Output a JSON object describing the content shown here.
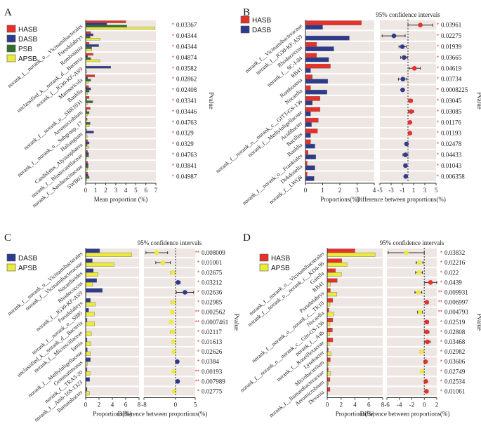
{
  "colors": {
    "HASB": "#e8302a",
    "DASB": "#2e3a8c",
    "PSB": "#2f6e2b",
    "APSB": "#ecea3a",
    "row_bg": "#ede6e3",
    "star": "#e8302a",
    "text": "#222222"
  },
  "chart_data": [
    {
      "panel": "A",
      "type": "bar",
      "orientation": "horizontal",
      "legend": [
        "HASB",
        "DASB",
        "PSB",
        "APSB"
      ],
      "legend_position": "top-left",
      "categories": [
        "norank_f__norank_o__Vicinamibacterales",
        "Pseudolabrys",
        "Romboutsia",
        "unclassified_k__norank_d__Bacteria",
        "norank_f__JG30-KF-AS9",
        "Marmoricola",
        "Bauldia",
        "norank_f__norank_o__SBR1031",
        "Aeromicrobium",
        "norank_f__norank_o__Subgroup_17",
        "Haliangium",
        "Candidatus_Alysiosphaera",
        "norank_f__Blastocatellaceae",
        "norank_f__Sandaracinaceae",
        "SWB02"
      ],
      "series": [
        {
          "name": "HASB",
          "values": [
            4.0,
            0.5,
            0.35,
            0.75,
            0.0,
            0.9,
            0.3,
            0.35,
            0.45,
            0.15,
            0.1,
            0.2,
            0.2,
            0.2,
            0.2
          ]
        },
        {
          "name": "DASB",
          "values": [
            2.1,
            0.75,
            1.3,
            0.2,
            2.5,
            0.2,
            0.5,
            0.1,
            0.1,
            0.05,
            0.8,
            0.35,
            0.3,
            0.25,
            0.25
          ]
        },
        {
          "name": "PSB",
          "values": [
            4.1,
            0.45,
            0.6,
            0.5,
            0.0,
            0.5,
            0.35,
            0.7,
            0.35,
            0.45,
            0.05,
            0.15,
            0.3,
            0.25,
            0.35
          ]
        },
        {
          "name": "APSB",
          "values": [
            6.9,
            1.45,
            0.6,
            1.4,
            0.1,
            0.25,
            0.2,
            0.15,
            0.2,
            0.35,
            0.15,
            0.3,
            0.1,
            0.2,
            0.1
          ]
        }
      ],
      "xlabel": "Mean proportion (%)",
      "xlim": [
        0,
        7
      ],
      "xticks": [
        "0",
        "1",
        "2",
        "3",
        "4",
        "5",
        "6",
        "7"
      ],
      "pvalues": [
        "0.03367",
        "0.04344",
        "0.04344",
        "0.04874",
        "0.03582",
        "0.02862",
        "0.02408",
        "0.03341",
        "0.03446",
        "0.04763",
        "0.0329",
        "0.0329",
        "0.04763",
        "0.03841",
        "0.04987"
      ],
      "significance": [
        "*",
        "*",
        "*",
        "*",
        "*",
        "*",
        "*",
        "*",
        "*",
        "*",
        "*",
        "*",
        "*",
        "*",
        "*"
      ],
      "pvalue_label": "Pvalue"
    },
    {
      "panel": "B",
      "type": "bar",
      "orientation": "horizontal",
      "legend": [
        "HASB",
        "DASB"
      ],
      "legend_position": "top-left",
      "categories": [
        "norank_f__Vicinamibacteraceae",
        "norank_f__JG30-KF-AS9",
        "Rhodococcus",
        "norank_f__SC-I-84",
        "RB41",
        "Romboutsia",
        "Nocardia",
        "norank_f__norank_o__norank_c__GITT-GS-136",
        "norank_f__Methyloligellaceae",
        "Acidibacter",
        "Bacillus",
        "Bauldia",
        "norank_f__norank_o__Frankiales",
        "Dokdonella",
        "norank_f__LWQ8"
      ],
      "series": [
        {
          "name": "HASB",
          "values": [
            3.25,
            0.0,
            0.65,
            0.65,
            1.45,
            0.4,
            0.3,
            0.85,
            0.85,
            0.75,
            0.7,
            0.3,
            0.15,
            0.1,
            0.1
          ]
        },
        {
          "name": "DASB",
          "values": [
            1.0,
            2.55,
            1.65,
            1.35,
            0.3,
            1.3,
            1.25,
            0.4,
            0.3,
            0.35,
            0.3,
            0.55,
            0.6,
            0.55,
            0.5
          ]
        }
      ],
      "xlabel": "Proportions(%)",
      "xlim": [
        0,
        4
      ],
      "xticks": [
        "0",
        "1",
        "2",
        "3",
        "4"
      ],
      "ci_title": "95% confidence intervals",
      "ci_xlabel": "Difference between proportions(%)",
      "ci_xlim": [
        -5,
        5
      ],
      "ci_xticks": [
        "-5",
        "-3",
        "-1",
        "1",
        "3",
        "5"
      ],
      "differences": [
        {
          "value": 2.2,
          "low": 0.0,
          "high": 4.4,
          "group": "HASB"
        },
        {
          "value": -2.5,
          "low": -4.6,
          "high": -0.5,
          "group": "DASB"
        },
        {
          "value": -1.0,
          "low": -1.6,
          "high": -0.3,
          "group": "DASB"
        },
        {
          "value": -0.7,
          "low": -1.3,
          "high": -0.1,
          "group": "DASB"
        },
        {
          "value": 1.15,
          "low": 0.2,
          "high": 2.2,
          "group": "HASB"
        },
        {
          "value": -0.9,
          "low": -1.7,
          "high": -0.2,
          "group": "DASB"
        },
        {
          "value": -0.95,
          "low": -1.1,
          "high": -0.8,
          "group": "DASB"
        },
        {
          "value": 0.45,
          "low": 0.1,
          "high": 0.8,
          "group": "HASB"
        },
        {
          "value": 0.55,
          "low": 0.1,
          "high": 1.0,
          "group": "HASB"
        },
        {
          "value": 0.35,
          "low": 0.2,
          "high": 0.5,
          "group": "HASB"
        },
        {
          "value": 0.35,
          "low": 0.2,
          "high": 0.5,
          "group": "HASB"
        },
        {
          "value": -0.25,
          "low": -0.45,
          "high": -0.05,
          "group": "DASB"
        },
        {
          "value": -0.45,
          "low": -0.9,
          "high": 0.0,
          "group": "DASB"
        },
        {
          "value": -0.45,
          "low": -0.65,
          "high": -0.25,
          "group": "DASB"
        },
        {
          "value": -0.4,
          "low": -0.6,
          "high": -0.2,
          "group": "DASB"
        }
      ],
      "pvalues": [
        "0.03961",
        "0.02275",
        "0.01939",
        "0.03665",
        "0.04619",
        "0.03734",
        "0.0008225",
        "0.03045",
        "0.03085",
        "0.01176",
        "0.01193",
        "0.02478",
        "0.04433",
        "0.01043",
        "0.006358"
      ],
      "significance": [
        "*",
        "*",
        "*",
        "*",
        "*",
        "*",
        "***",
        "*",
        "*",
        "*",
        "*",
        "*",
        "*",
        "*",
        "**"
      ],
      "pvalue_label": "Pvalue"
    },
    {
      "panel": "C",
      "type": "bar",
      "orientation": "horizontal",
      "legend": [
        "DASB",
        "APSB"
      ],
      "legend_position": "top-left",
      "categories": [
        "norank_f__norank_o__Vicinamibacterales",
        "norank_f__Vicinamibacteraceae",
        "Nocardioides",
        "Rhodococcus",
        "norank_f__JG30-KF-AS9",
        "Pseudolabrys",
        "norank_f__norank_o__S085",
        "unclassified_k__norank_d__Bacteria",
        "norank_f__Microscillaceae",
        "Iamia",
        "norank_f__Methyloligellaceae",
        "Gemmatimonas",
        "norank_f__TRA3-20",
        "norank_f__Amb-16S-1323",
        "Ilumatobacter"
      ],
      "series": [
        {
          "name": "DASB",
          "values": [
            2.1,
            1.0,
            1.15,
            1.65,
            2.5,
            0.7,
            0.45,
            0.2,
            0.05,
            0.2,
            0.25,
            0.7,
            0.2,
            0.6,
            0.2
          ]
        },
        {
          "name": "APSB",
          "values": [
            6.9,
            4.25,
            1.85,
            1.0,
            0.05,
            1.45,
            1.3,
            1.35,
            0.85,
            0.8,
            0.7,
            0.25,
            0.65,
            0.05,
            0.55
          ]
        }
      ],
      "xlabel": "Proportions(%)",
      "xlim": [
        0,
        8
      ],
      "xticks": [
        "0",
        "2",
        "4",
        "6",
        "8"
      ],
      "ci_title": "95% confidence intervals",
      "ci_xlabel": "Difference between proportions(%)",
      "ci_xlim": [
        -8,
        5
      ],
      "ci_xticks": [
        "-8",
        "0",
        "5"
      ],
      "differences": [
        {
          "value": -4.8,
          "low": -7.5,
          "high": -2.0,
          "group": "APSB"
        },
        {
          "value": -3.2,
          "low": -5.0,
          "high": -1.3,
          "group": "APSB"
        },
        {
          "value": -0.7,
          "low": -1.2,
          "high": -0.2,
          "group": "APSB"
        },
        {
          "value": 0.65,
          "low": 0.1,
          "high": 1.2,
          "group": "DASB"
        },
        {
          "value": 2.4,
          "low": 0.2,
          "high": 4.6,
          "group": "DASB"
        },
        {
          "value": -0.6,
          "low": -1.1,
          "high": -0.1,
          "group": "APSB"
        },
        {
          "value": -0.85,
          "low": -1.2,
          "high": -0.5,
          "group": "APSB"
        },
        {
          "value": -1.1,
          "low": -1.4,
          "high": -0.8,
          "group": "APSB"
        },
        {
          "value": -0.7,
          "low": -1.2,
          "high": -0.2,
          "group": "APSB"
        },
        {
          "value": -0.55,
          "low": -0.95,
          "high": -0.15,
          "group": "APSB"
        },
        {
          "value": -0.45,
          "low": -0.75,
          "high": -0.15,
          "group": "APSB"
        },
        {
          "value": 0.45,
          "low": 0.15,
          "high": 0.8,
          "group": "DASB"
        },
        {
          "value": -0.45,
          "low": -0.75,
          "high": -0.15,
          "group": "APSB"
        },
        {
          "value": 0.55,
          "low": 0.3,
          "high": 0.8,
          "group": "DASB"
        },
        {
          "value": -0.35,
          "low": -0.65,
          "high": -0.05,
          "group": "APSB"
        }
      ],
      "pvalues": [
        "0.008009",
        "0.01001",
        "0.02675",
        "0.03212",
        "0.02636",
        "0.02985",
        "0.002562",
        "0.0007461",
        "0.02117",
        "0.01613",
        "0.02626",
        "0.0384",
        "0.00193",
        "0.007989",
        "0.02775"
      ],
      "significance": [
        "**",
        "*",
        "*",
        "*",
        "*",
        "*",
        "**",
        "***",
        "*",
        "*",
        "*",
        "*",
        "**",
        "**",
        "*"
      ],
      "pvalue_label": "Pvalue"
    },
    {
      "panel": "D",
      "type": "bar",
      "orientation": "horizontal",
      "legend": [
        "HASB",
        "APSB"
      ],
      "legend_position": "top-left",
      "categories": [
        "norank_f__norank_o__Vicinamibacterales",
        "norank_f__norank_o__norank_c__KD4-96",
        "Gaiella",
        "RB41",
        "Pseudolabrys",
        "norank_f__norank_o__norank_c__TK10",
        "Nocardia",
        "norank_f__norank_o__norank_c__Gitt-GS-136",
        "norank_f__A4b",
        "norank_f__Roseiflexaceae",
        "Lysobacter",
        "Microbacterium",
        "norank_f__Ilumatobacteraceae",
        "Aeromicrobium",
        "Devosia"
      ],
      "series": [
        {
          "name": "HASB",
          "values": [
            4.0,
            2.1,
            1.2,
            1.45,
            0.45,
            0.8,
            0.25,
            0.8,
            0.75,
            0.8,
            0.15,
            0.45,
            0.15,
            0.4,
            0.4
          ]
        },
        {
          "name": "APSB",
          "values": [
            6.9,
            2.85,
            2.05,
            0.45,
            1.4,
            0.4,
            0.95,
            0.4,
            0.35,
            0.3,
            0.55,
            0.25,
            0.5,
            0.15,
            0.05
          ]
        }
      ],
      "xlabel": "Proportions(%)",
      "xlim": [
        0,
        8
      ],
      "xticks": [
        "0",
        "2",
        "4",
        "6",
        "8"
      ],
      "ci_title": "95% confidence intervals",
      "ci_xlabel": "Difference between proportions(%)",
      "ci_xlim": [
        -6,
        2
      ],
      "ci_xticks": [
        "-6",
        "-4",
        "-2",
        "0",
        "2"
      ],
      "differences": [
        {
          "value": -2.9,
          "low": -5.8,
          "high": 0.0,
          "group": "APSB"
        },
        {
          "value": -0.75,
          "low": -1.3,
          "high": -0.2,
          "group": "APSB"
        },
        {
          "value": -0.85,
          "low": -1.4,
          "high": -0.3,
          "group": "APSB"
        },
        {
          "value": 1.0,
          "low": 0.05,
          "high": 2.0,
          "group": "HASB"
        },
        {
          "value": -0.95,
          "low": -1.5,
          "high": -0.4,
          "group": "APSB"
        },
        {
          "value": 0.4,
          "low": 0.15,
          "high": 0.65,
          "group": "HASB"
        },
        {
          "value": -0.7,
          "low": -1.1,
          "high": -0.3,
          "group": "APSB"
        },
        {
          "value": 0.4,
          "low": 0.1,
          "high": 0.7,
          "group": "HASB"
        },
        {
          "value": 0.4,
          "low": 0.05,
          "high": 0.75,
          "group": "HASB"
        },
        {
          "value": 0.5,
          "low": 0.05,
          "high": 0.95,
          "group": "HASB"
        },
        {
          "value": -0.4,
          "low": -0.7,
          "high": -0.1,
          "group": "APSB"
        },
        {
          "value": 0.2,
          "low": 0.05,
          "high": 0.35,
          "group": "HASB"
        },
        {
          "value": -0.35,
          "low": -0.6,
          "high": -0.1,
          "group": "APSB"
        },
        {
          "value": 0.25,
          "low": 0.1,
          "high": 0.4,
          "group": "HASB"
        },
        {
          "value": 0.35,
          "low": 0.1,
          "high": 0.6,
          "group": "HASB"
        }
      ],
      "pvalues": [
        "0.03832",
        "0.02216",
        "0.022",
        "0.0439",
        "0.009931",
        "0.006997",
        "0.004793",
        "0.02519",
        "0.02808",
        "0.03468",
        "0.02982",
        "0.03606",
        "0.02749",
        "0.02534",
        "0.01061"
      ],
      "significance": [
        "*",
        "*",
        "*",
        "*",
        "**",
        "**",
        "**",
        "*",
        "*",
        "*",
        "*",
        "*",
        "*",
        "*",
        "*"
      ],
      "pvalue_label": "Pvalue"
    }
  ]
}
